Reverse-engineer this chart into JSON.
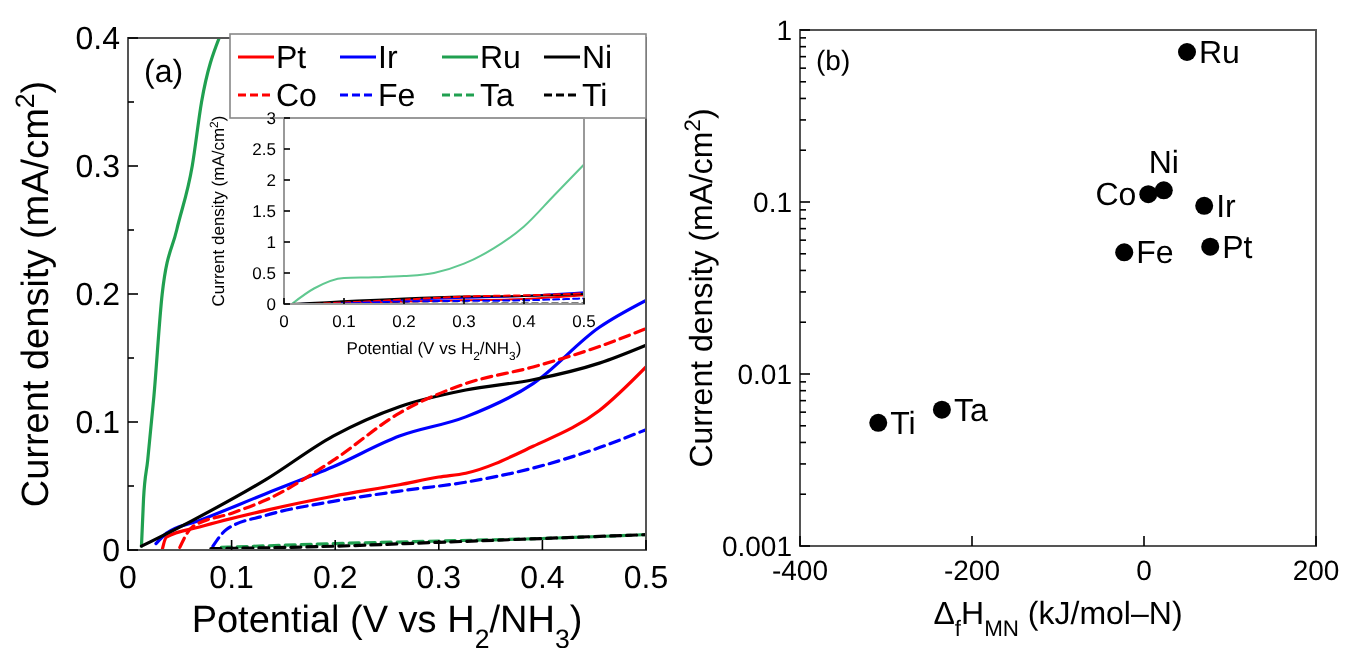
{
  "chart_data": [
    {
      "type": "line",
      "xlabel": "Potential (V vs H$_{2}$/NH$_{3}$)",
      "ylabel": "Current density (mA/cm$^{2}$)",
      "annotations": [
        "(a)"
      ],
      "xlim": [
        0,
        0.5
      ],
      "ylim": [
        0,
        0.4
      ],
      "xticks": [
        0,
        0.1,
        0.2,
        0.3,
        0.4,
        0.5
      ],
      "yticks": [
        0,
        {
          "value": 0.05,
          "label": null
        },
        0.1,
        {
          "value": 0.15,
          "label": null
        },
        0.2,
        {
          "value": 0.25,
          "label": null
        },
        0.3,
        {
          "value": 0.35,
          "label": null
        },
        0.4
      ],
      "legend": "top right",
      "series": [
        {
          "name": "Pt",
          "color": "#ff0000",
          "line_style": "solid",
          "x": [
            0.033,
            0.037,
            0.069,
            0.133,
            0.198,
            0.262,
            0.3,
            0.326,
            0.391,
            0.455,
            0.5
          ],
          "values": [
            0,
            0.01,
            0.018,
            0.031,
            0.042,
            0.051,
            0.057,
            0.06,
            0.081,
            0.109,
            0.143
          ]
        },
        {
          "name": "Ir",
          "color": "#0000ff",
          "line_style": "solid",
          "x": [
            0.027,
            0.037,
            0.069,
            0.133,
            0.198,
            0.262,
            0.326,
            0.391,
            0.455,
            0.5
          ],
          "values": [
            0.005,
            0.013,
            0.023,
            0.044,
            0.065,
            0.089,
            0.104,
            0.13,
            0.174,
            0.195
          ]
        },
        {
          "name": "Ru",
          "color": "#20a050",
          "line_style": "solid",
          "x": [
            0.013,
            0.015,
            0.019,
            0.025,
            0.033,
            0.047,
            0.062,
            0.071,
            0.088
          ],
          "values": [
            0.003,
            0.04,
            0.07,
            0.12,
            0.2,
            0.25,
            0.3,
            0.35,
            0.4
          ]
        },
        {
          "name": "Ni",
          "color": "#000000",
          "line_style": "solid",
          "x": [
            0.013,
            0.062,
            0.133,
            0.198,
            0.262,
            0.326,
            0.391,
            0.455,
            0.5
          ],
          "values": [
            0.003,
            0.023,
            0.055,
            0.089,
            0.112,
            0.125,
            0.133,
            0.146,
            0.16
          ]
        },
        {
          "name": "Co",
          "color": "#ff0000",
          "line_style": "dashed",
          "x": [
            0.05,
            0.062,
            0.101,
            0.133,
            0.198,
            0.262,
            0.326,
            0.391,
            0.455,
            0.5
          ],
          "values": [
            0.002,
            0.018,
            0.029,
            0.039,
            0.07,
            0.107,
            0.13,
            0.143,
            0.159,
            0.173
          ]
        },
        {
          "name": "Fe",
          "color": "#0000ff",
          "line_style": "dashed",
          "x": [
            0.082,
            0.095,
            0.133,
            0.198,
            0.262,
            0.326,
            0.391,
            0.455,
            0.5
          ],
          "values": [
            0.003,
            0.016,
            0.027,
            0.038,
            0.046,
            0.053,
            0.064,
            0.08,
            0.094
          ]
        },
        {
          "name": "Ta",
          "color": "#20a050",
          "line_style": "dashed",
          "x": [
            0.09,
            0.2,
            0.3,
            0.4,
            0.5
          ],
          "values": [
            0.002,
            0.005,
            0.007,
            0.009,
            0.012
          ]
        },
        {
          "name": "Ti",
          "color": "#000000",
          "line_style": "dashed",
          "x": [
            0.08,
            0.2,
            0.3,
            0.4,
            0.5
          ],
          "values": [
            0.001,
            0.003,
            0.006,
            0.009,
            0.012
          ]
        }
      ]
    },
    {
      "type": "line",
      "xlabel": "Potential (V vs H$_{2}$/NH$_{3}$)",
      "ylabel": "Current density (mA/cm$^{2}$)",
      "xlim": [
        0,
        0.5
      ],
      "ylim": [
        0,
        3
      ],
      "xticks": [
        0,
        0.1,
        0.2,
        0.3,
        0.4,
        0.5
      ],
      "yticks": [
        0,
        0.5,
        1,
        1.5,
        2,
        2.5,
        3
      ],
      "series": [
        {
          "color": "#ff0000",
          "line_style": "solid",
          "x": [
            0.033,
            0.2,
            0.3,
            0.4,
            0.5
          ],
          "values": [
            0,
            0.04,
            0.06,
            0.08,
            0.14
          ]
        },
        {
          "color": "#0000ff",
          "line_style": "solid",
          "x": [
            0.027,
            0.2,
            0.3,
            0.4,
            0.5
          ],
          "values": [
            0,
            0.07,
            0.1,
            0.13,
            0.19
          ]
        },
        {
          "color": "#60c890",
          "line_style": "solid",
          "x": [
            0.013,
            0.05,
            0.1,
            0.15,
            0.2,
            0.25,
            0.3,
            0.35,
            0.4,
            0.45,
            0.5
          ],
          "values": [
            0,
            0.25,
            0.42,
            0.43,
            0.45,
            0.5,
            0.65,
            0.9,
            1.25,
            1.75,
            2.25
          ]
        },
        {
          "color": "#000000",
          "line_style": "solid",
          "x": [
            0.013,
            0.2,
            0.3,
            0.4,
            0.5
          ],
          "values": [
            0,
            0.09,
            0.12,
            0.13,
            0.16
          ]
        },
        {
          "color": "#ff0000",
          "line_style": "dashed",
          "x": [
            0.05,
            0.2,
            0.3,
            0.4,
            0.5
          ],
          "values": [
            0,
            0.07,
            0.12,
            0.14,
            0.17
          ]
        },
        {
          "color": "#0000ff",
          "line_style": "dashed",
          "x": [
            0.082,
            0.2,
            0.3,
            0.4,
            0.5
          ],
          "values": [
            0,
            0.04,
            0.05,
            0.06,
            0.09
          ]
        },
        {
          "color": "#000000",
          "line_style": "dashed",
          "x": [
            0.08,
            0.5
          ],
          "values": [
            0,
            0.01
          ]
        }
      ]
    },
    {
      "type": "scatter",
      "xlabel": "Δ$_{f}$H$_{MN}$ (kJ/mol–N)",
      "ylabel": "Current density (mA/cm$^{2}$)",
      "log": "y",
      "marker": "circle",
      "xlim": [
        -400,
        200
      ],
      "ylim": [
        0.001,
        1
      ],
      "xticks": [
        -400,
        -200,
        0,
        200
      ],
      "yticks": [
        0.001,
        {
          "value": 0.002,
          "label": null
        },
        {
          "value": 0.003,
          "label": null
        },
        {
          "value": 0.004,
          "label": null
        },
        {
          "value": 0.005,
          "label": null
        },
        {
          "value": 0.006,
          "label": null
        },
        {
          "value": 0.007,
          "label": null
        },
        {
          "value": 0.008,
          "label": null
        },
        {
          "value": 0.009,
          "label": null
        },
        0.01,
        {
          "value": 0.02,
          "label": null
        },
        {
          "value": 0.03,
          "label": null
        },
        {
          "value": 0.04,
          "label": null
        },
        {
          "value": 0.05,
          "label": null
        },
        {
          "value": 0.06,
          "label": null
        },
        {
          "value": 0.07,
          "label": null
        },
        {
          "value": 0.08,
          "label": null
        },
        {
          "value": 0.09,
          "label": null
        },
        0.1,
        {
          "value": 0.2,
          "label": null
        },
        {
          "value": 0.3,
          "label": null
        },
        {
          "value": 0.4,
          "label": null
        },
        {
          "value": 0.5,
          "label": null
        },
        {
          "value": 0.6,
          "label": null
        },
        {
          "value": 0.7,
          "label": null
        },
        {
          "value": 0.8,
          "label": null
        },
        {
          "value": 0.9,
          "label": null
        },
        1
      ],
      "series": [
        {
          "color": "#000000",
          "x": [
            50,
            23,
            5,
            70,
            77,
            -23,
            -235,
            -309
          ],
          "values": [
            0.745,
            0.117,
            0.111,
            0.095,
            0.055,
            0.051,
            0.0062,
            0.0052
          ]
        }
      ],
      "annotations": [
        "(b)",
        {
          "text": "Ru",
          "x": 50,
          "y": 0.745
        },
        {
          "text": "Ni",
          "x": 23,
          "y": 0.117
        },
        {
          "text": "Co",
          "x": 5,
          "y": 0.111
        },
        {
          "text": "Ir",
          "x": 70,
          "y": 0.095
        },
        {
          "text": "Pt",
          "x": 77,
          "y": 0.055
        },
        {
          "text": "Fe",
          "x": -23,
          "y": 0.051
        },
        {
          "text": "Ta",
          "x": -235,
          "y": 0.0062
        },
        {
          "text": "Ti",
          "x": -309,
          "y": 0.0052
        }
      ]
    }
  ]
}
